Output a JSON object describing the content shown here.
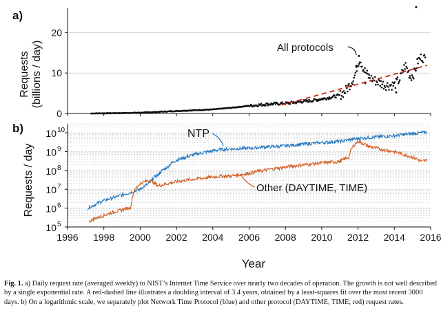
{
  "panel_a": {
    "label": "a)",
    "ylabel_line1": "Requests",
    "ylabel_line2": "(billions / day)",
    "yticks": [
      "0",
      "10",
      "20"
    ],
    "annotation": "All protocols"
  },
  "panel_b": {
    "label": "b)",
    "ylabel": "Requests / day",
    "ytick_bases": [
      "10",
      "10",
      "10",
      "10",
      "10",
      "10"
    ],
    "ytick_exps": [
      "5",
      "6",
      "7",
      "8",
      "9",
      "10"
    ],
    "annotation_ntp": "NTP",
    "annotation_other": "Other (DAYTIME, TIME)"
  },
  "xaxis": {
    "label": "Year",
    "ticks": [
      "1996",
      "1998",
      "2000",
      "2002",
      "2004",
      "2006",
      "2008",
      "2010",
      "2012",
      "2014",
      "2016"
    ]
  },
  "caption": {
    "lead": "Fig. 1.",
    "text": " a) Daily request rate (averaged weekly) to NIST’s Internet Time Service over nearly two decades of operation. The growth is not well described by a single exponential rate. A red-dashed line illustrates a doubling interval of 3.4 years, obtained by a least-squares fit over the most recent 3000 days. b) On a logarithmic scale, we separately plot Network Time Protocol (blue) and other protocol (DAYTIME, TIME; red) request rates."
  },
  "colors": {
    "points": "#111111",
    "fit": "#d62d20",
    "ntp": "#1f73c0",
    "other": "#d25a1e",
    "grid": "#bdbdbd"
  },
  "chart_data": [
    {
      "type": "scatter",
      "panel": "a",
      "xlim": [
        1996,
        2016
      ],
      "ylim": [
        0,
        26
      ],
      "x": [
        1997.3,
        1998.0,
        1999.0,
        2000.0,
        2001.0,
        2002.0,
        2003.0,
        2004.0,
        2005.0,
        2006.0,
        2007.0,
        2008.0,
        2008.5,
        2009.0,
        2009.5,
        2010.0,
        2010.5,
        2011.0,
        2011.3,
        2011.6,
        2011.8,
        2012.0,
        2012.1,
        2012.3,
        2012.6,
        2013.0,
        2013.5,
        2014.0,
        2014.3,
        2014.6,
        2014.9,
        2015.1,
        2015.3,
        2015.5,
        2015.7
      ],
      "y": [
        0.0,
        0.05,
        0.1,
        0.2,
        0.4,
        0.6,
        0.8,
        1.0,
        1.4,
        1.9,
        2.3,
        2.5,
        2.7,
        3.0,
        3.2,
        3.6,
        4.0,
        4.5,
        5.5,
        7.5,
        9.0,
        12.5,
        13.5,
        11.0,
        9.0,
        8.0,
        7.0,
        7.0,
        8.5,
        12.0,
        9.0,
        10.0,
        13.0,
        14.0,
        13.5
      ],
      "outliers": [
        [
          2015.2,
          26.3
        ],
        [
          2012.05,
          14.2
        ],
        [
          2011.9,
          11.5
        ],
        [
          2014.1,
          5.2
        ],
        [
          2012.4,
          7.5
        ]
      ]
    },
    {
      "type": "line",
      "panel": "a",
      "series": [
        {
          "x": [
            2007.8,
            2015.8
          ],
          "y": [
            2.1,
            11.9
          ],
          "style": "dashed"
        }
      ]
    },
    {
      "type": "line",
      "panel": "b",
      "yscale": "log",
      "xlim": [
        1996,
        2016
      ],
      "ylim": [
        100000,
        30000000000
      ],
      "series": [
        {
          "name": "NTP",
          "x": [
            1997.1,
            1997.5,
            1998.0,
            1998.5,
            1999.0,
            1999.5,
            2000.0,
            2000.5,
            2001.0,
            2001.5,
            2002.0,
            2002.5,
            2003.0,
            2003.5,
            2004.0,
            2004.5,
            2005.0,
            2006.0,
            2007.0,
            2008.0,
            2009.0,
            2010.0,
            2011.0,
            2012.0,
            2012.5,
            2013.0,
            2013.5,
            2014.0,
            2014.5,
            2015.0,
            2015.5,
            2015.8
          ],
          "y": [
            1000000,
            1500000,
            2500000,
            3500000,
            5000000,
            7000000,
            10000000,
            20000000,
            60000000,
            150000000,
            350000000,
            500000000,
            700000000,
            900000000,
            1100000000,
            1300000000,
            1400000000,
            1500000000,
            1800000000,
            2000000000,
            2500000000,
            3000000000,
            3500000000,
            5000000000,
            5500000000,
            6000000000,
            6500000000,
            7000000000,
            8000000000,
            9000000000,
            10000000000,
            11000000000
          ]
        },
        {
          "name": "Other (DAYTIME, TIME)",
          "x": [
            1997.2,
            1997.5,
            1998.0,
            1998.5,
            1999.0,
            1999.5,
            2000.0,
            2000.5,
            2001.0,
            2001.5,
            2002.0,
            2002.5,
            2003.0,
            2003.5,
            2004.0,
            2004.5,
            2005.0,
            2006.0,
            2007.0,
            2008.0,
            2009.0,
            2010.0,
            2011.0,
            2011.5,
            2012.0,
            2012.5,
            2013.0,
            2013.5,
            2014.0,
            2014.5,
            2015.0,
            2015.5,
            2015.8
          ],
          "y": [
            200000,
            280000,
            400000,
            600000,
            800000,
            1100000,
            20000000,
            30000000,
            15000000,
            20000000,
            25000000,
            30000000,
            35000000,
            40000000,
            45000000,
            50000000,
            50000000,
            70000000,
            110000000,
            150000000,
            200000000,
            250000000,
            300000000,
            500000000,
            3500000000,
            2000000000,
            1500000000,
            1200000000,
            1000000000,
            700000000,
            500000000,
            300000000,
            350000000
          ]
        }
      ]
    }
  ]
}
